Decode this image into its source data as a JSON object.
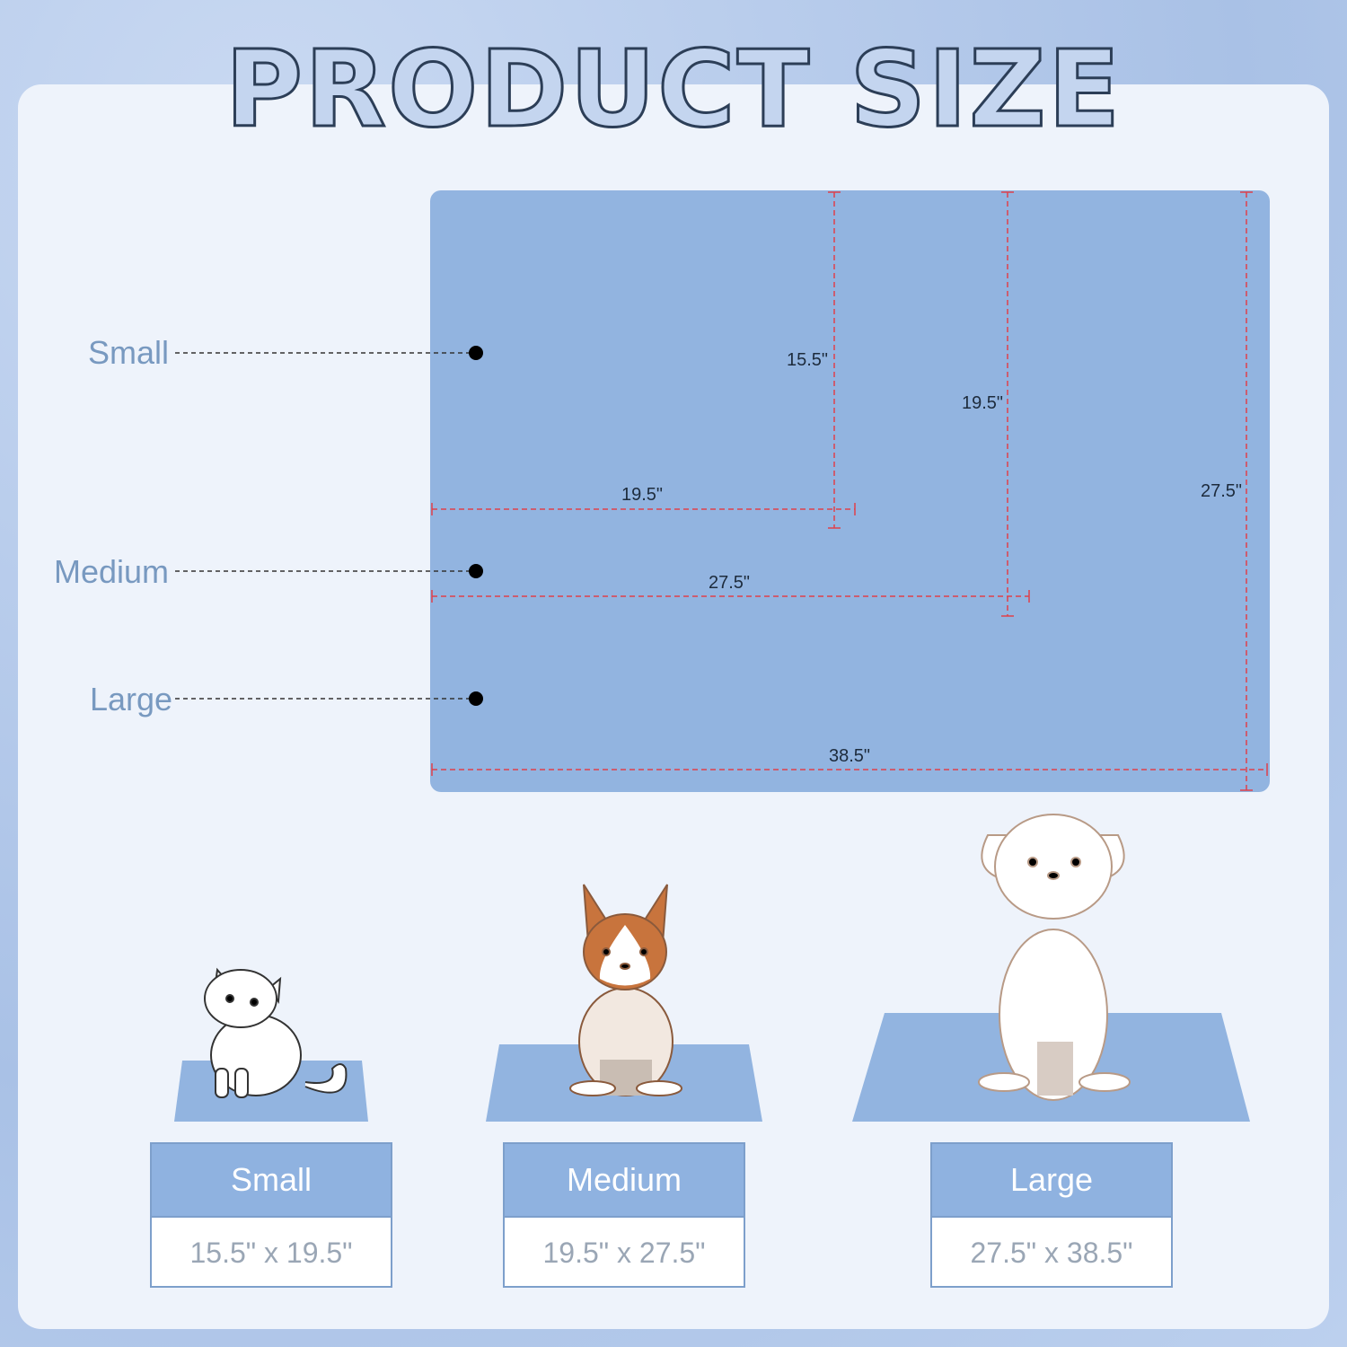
{
  "title": "PRODUCT SIZE",
  "colors": {
    "mat": "#92b4e0",
    "dimension_line": "#e0404a",
    "label": "#7899c0"
  },
  "diagram": {
    "labels": [
      "Small",
      "Medium",
      "Large"
    ],
    "dimensions": {
      "small_h": "15.5\"",
      "small_w": "19.5\"",
      "medium_h": "19.5\"",
      "medium_w": "27.5\"",
      "large_h": "27.5\"",
      "large_w": "38.5\""
    }
  },
  "sizes": [
    {
      "name": "Small",
      "value": "15.5\" x 19.5\"",
      "pet": "cat"
    },
    {
      "name": "Medium",
      "value": "19.5\" x 27.5\"",
      "pet": "corgi"
    },
    {
      "name": "Large",
      "value": "27.5\" x 38.5\"",
      "pet": "white-dog"
    }
  ]
}
